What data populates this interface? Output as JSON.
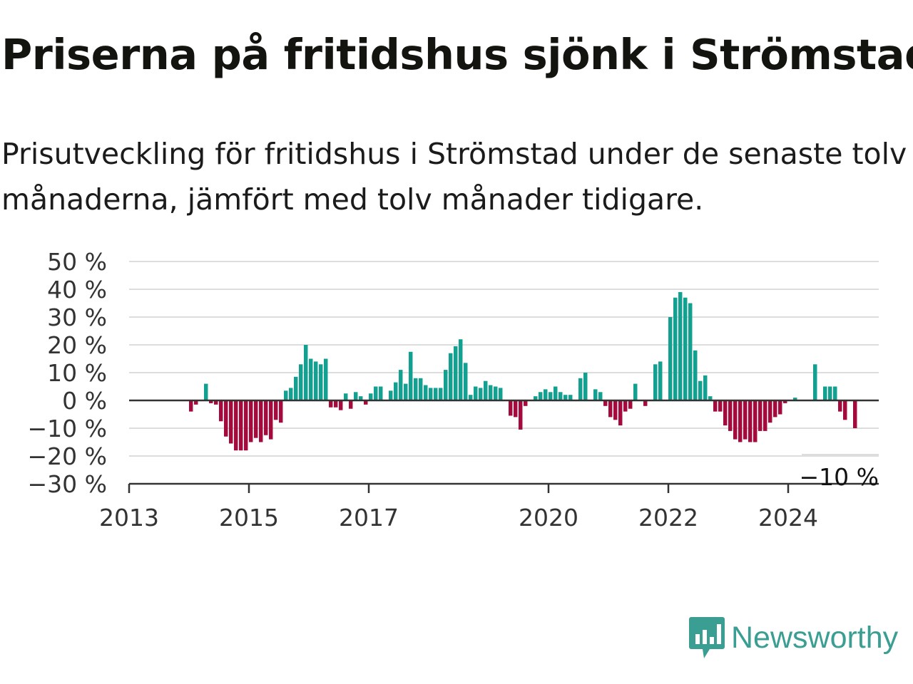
{
  "header": {
    "title": "Priserna på fritidshus sjönk i Strömstad",
    "subtitle": "Prisutveckling för fritidshus i Strömstad under de senaste tolv månaderna, jämfört med tolv månader tidigare."
  },
  "brand": {
    "name": "Newsworthy",
    "icon": "newsworthy-logo-icon",
    "color": "#3a9e92"
  },
  "chart_data": {
    "type": "bar",
    "title": "Priserna på fritidshus sjönk i Strömstad",
    "subtitle": "Prisutveckling för fritidshus i Strömstad under de senaste tolv månaderna, jämfört med tolv månader tidigare.",
    "xlabel": "",
    "ylabel": "",
    "ylim": [
      -30,
      50
    ],
    "yticks": [
      50,
      40,
      30,
      20,
      10,
      0,
      -10,
      -20,
      -30
    ],
    "ytick_labels": [
      "50 %",
      "40 %",
      "30 %",
      "20 %",
      "10 %",
      "0 %",
      "−10 %",
      "−20 %",
      "−30 %"
    ],
    "xticks": [
      {
        "label": "2013",
        "year": 2013.0
      },
      {
        "label": "2015",
        "year": 2015.0
      },
      {
        "label": "2017",
        "year": 2017.0
      },
      {
        "label": "2020",
        "year": 2020.0
      },
      {
        "label": "2022",
        "year": 2022.0
      },
      {
        "label": "2024",
        "year": 2024.0
      }
    ],
    "grid": true,
    "colors": {
      "positive": "#12a091",
      "negative": "#a50a3d"
    },
    "annotation": {
      "label": "−10 %",
      "value": -10
    },
    "series": [
      {
        "start": "2013-01",
        "frequency": "monthly",
        "values": [
          null,
          null,
          null,
          null,
          null,
          null,
          null,
          null,
          null,
          null,
          null,
          null,
          -4,
          -1.5,
          null,
          6,
          -1,
          -1.5,
          -7.5,
          -13,
          -15.5,
          -18,
          -18,
          -18,
          -15,
          -13.5,
          -15,
          -12.5,
          -14,
          -7,
          -8,
          3.5,
          4.5,
          8.5,
          13,
          20,
          15,
          14,
          13,
          15,
          -2.5,
          -2.5,
          -3.5,
          2.5,
          -3,
          3,
          1.5,
          -1.5,
          2.5,
          5,
          5,
          0,
          3.5,
          6.5,
          11,
          6,
          17.5,
          8,
          8,
          5.5,
          4.5,
          4.5,
          4.5,
          11,
          17,
          19.5,
          22,
          13.5,
          2,
          5,
          4.5,
          7,
          5.5,
          5,
          4.5,
          null,
          -5.5,
          -6,
          -10.5,
          -2,
          null,
          1.5,
          3,
          4,
          3,
          5,
          3,
          2,
          2,
          null,
          8,
          10,
          null,
          4,
          3,
          -2,
          -6,
          -7,
          -9,
          -4,
          -3,
          6,
          null,
          -2,
          null,
          13,
          14,
          null,
          30,
          37,
          39,
          37,
          35,
          18,
          7,
          9,
          1.5,
          -4,
          -4,
          -9,
          -11,
          -14,
          -15,
          -14,
          -15,
          -15,
          -11,
          -11,
          -8,
          -6,
          -5,
          -1,
          null,
          1,
          null,
          null,
          null,
          13,
          null,
          5,
          5,
          5,
          -4,
          -7,
          null,
          -10
        ]
      }
    ]
  }
}
